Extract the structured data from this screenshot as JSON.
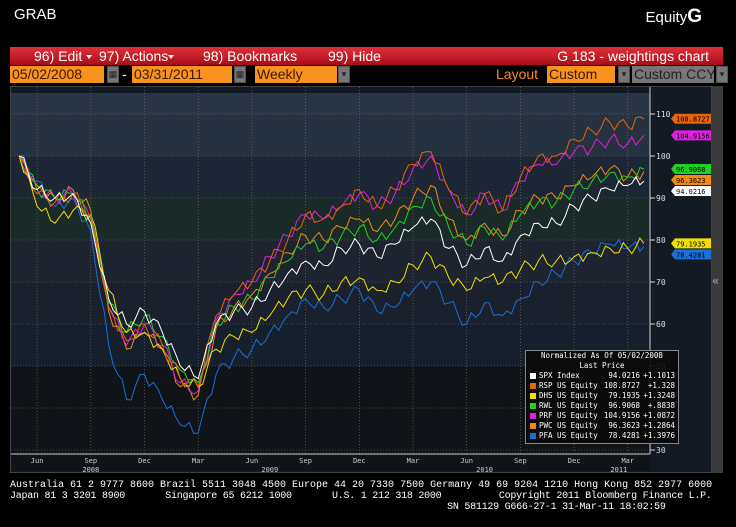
{
  "header": {
    "left": "GRAB",
    "right_prefix": "Equity",
    "right_logo": "G"
  },
  "menu": {
    "edit": "96) Edit",
    "actions": "97) Actions",
    "bookmarks": "98) Bookmarks",
    "hide": "99) Hide",
    "title": "G 183 - weightings chart"
  },
  "controls": {
    "start_date": "05/02/2008",
    "dash": "-",
    "end_date": "03/31/2011",
    "period": "Weekly",
    "layout_label": "Layout",
    "layout_value": "Custom",
    "currency": "Custom CCY"
  },
  "collapse_icon": "«",
  "legend": {
    "title": "Normalized As Of 05/02/2008",
    "subtitle": "Last Price"
  },
  "chart_data": {
    "type": "line",
    "title": "G 183 - weightings chart",
    "ylim": [
      25,
      115
    ],
    "yticks": [
      30,
      40,
      50,
      60,
      70,
      80,
      90,
      100,
      110
    ],
    "xticks": [
      {
        "label": "Jun",
        "m": 1
      },
      {
        "label": "Sep",
        "m": 4
      },
      {
        "label": "Dec",
        "m": 7
      },
      {
        "label": "Mar",
        "m": 10
      },
      {
        "label": "Jun",
        "m": 13
      },
      {
        "label": "Sep",
        "m": 16
      },
      {
        "label": "Dec",
        "m": 19
      },
      {
        "label": "Mar",
        "m": 22
      },
      {
        "label": "Jun",
        "m": 25
      },
      {
        "label": "Sep",
        "m": 28
      },
      {
        "label": "Dec",
        "m": 31
      },
      {
        "label": "Mar",
        "m": 34
      }
    ],
    "years": [
      {
        "label": "2008",
        "m": 4
      },
      {
        "label": "2009",
        "m": 14
      },
      {
        "label": "2010",
        "m": 26
      },
      {
        "label": "2011",
        "m": 33.5
      }
    ],
    "x_months": [
      0,
      1,
      2,
      3,
      4,
      5,
      6,
      7,
      8,
      9,
      10,
      11,
      12,
      13,
      14,
      15,
      16,
      17,
      18,
      19,
      20,
      21,
      22,
      23,
      24,
      25,
      26,
      27,
      28,
      29,
      30,
      31,
      32,
      33,
      34,
      34.9
    ],
    "series": [
      {
        "name": "SPX Index",
        "color": "#ffffff",
        "last": "94.0216",
        "change": "+1.1013",
        "tag": "94.0216",
        "values": [
          100,
          92,
          90,
          91,
          84,
          66,
          60,
          63,
          58,
          50,
          47,
          60,
          63,
          64,
          68,
          72,
          75,
          74,
          78,
          79,
          76,
          79,
          83,
          85,
          78,
          74,
          78,
          75,
          81,
          84,
          84,
          88,
          90,
          92,
          93,
          94.02
        ]
      },
      {
        "name": "RSP US Equity",
        "color": "#e8640a",
        "last": "108.8727",
        "change": "+1.328",
        "tag": "108.8727",
        "values": [
          100,
          91,
          89,
          91,
          86,
          64,
          56,
          60,
          55,
          47,
          45,
          62,
          67,
          70,
          75,
          80,
          86,
          85,
          88,
          92,
          88,
          92,
          98,
          101,
          92,
          86,
          91,
          87,
          95,
          100,
          100,
          104,
          106,
          108,
          107,
          108.87
        ]
      },
      {
        "name": "DHS US Equity",
        "color": "#f0e000",
        "last": "79.1935",
        "change": "+1.3248",
        "tag": "79.1935",
        "values": [
          100,
          88,
          84,
          87,
          86,
          68,
          58,
          58,
          54,
          47,
          45,
          54,
          57,
          58,
          62,
          66,
          68,
          67,
          70,
          71,
          68,
          70,
          74,
          76,
          71,
          68,
          71,
          70,
          73,
          75,
          75,
          76,
          77,
          78,
          78,
          79.19
        ]
      },
      {
        "name": "RWL US Equity",
        "color": "#22d022",
        "last": "96.9068",
        "change": "+.8838",
        "tag": "96.9068",
        "values": [
          100,
          92,
          90,
          91,
          85,
          65,
          58,
          62,
          57,
          49,
          46,
          60,
          64,
          66,
          71,
          75,
          79,
          78,
          81,
          83,
          80,
          83,
          88,
          90,
          83,
          79,
          83,
          80,
          86,
          89,
          89,
          92,
          94,
          96,
          95,
          96.91
        ]
      },
      {
        "name": "PRF US Equity",
        "color": "#e020e0",
        "last": "104.9156",
        "change": "+1.0872",
        "tag": "104.9156",
        "values": [
          100,
          92,
          90,
          91,
          85,
          64,
          55,
          60,
          55,
          46,
          44,
          61,
          67,
          70,
          76,
          81,
          86,
          85,
          88,
          91,
          88,
          91,
          97,
          100,
          92,
          86,
          91,
          87,
          94,
          98,
          98,
          101,
          102,
          104,
          103,
          104.92
        ]
      },
      {
        "name": "PWC US Equity",
        "color": "#f08a10",
        "last": "96.3623",
        "change": "+1.2864",
        "tag": "96.3623",
        "values": [
          100,
          93,
          90,
          92,
          87,
          63,
          54,
          58,
          54,
          45,
          43,
          59,
          64,
          67,
          72,
          77,
          81,
          80,
          83,
          85,
          82,
          85,
          90,
          93,
          85,
          80,
          84,
          81,
          87,
          90,
          90,
          93,
          95,
          97,
          95,
          96.36
        ]
      },
      {
        "name": "PFA US Equity",
        "color": "#1a6fd8",
        "last": "78.4281",
        "change": "+1.3976",
        "tag": "78.4281",
        "values": [
          100,
          94,
          88,
          90,
          82,
          55,
          42,
          48,
          42,
          36,
          34,
          48,
          52,
          54,
          58,
          62,
          66,
          64,
          66,
          68,
          63,
          64,
          68,
          70,
          65,
          60,
          65,
          62,
          66,
          70,
          72,
          75,
          77,
          79,
          78,
          78.43
        ]
      }
    ]
  },
  "footer": {
    "line1": "Australia 61 2 9777 8600 Brazil 5511 3048 4500 Europe 44 20 7330 7500 Germany 49 69 9204 1210 Hong Kong 852 2977 6000",
    "line2": "Japan 81 3 3201 8900       Singapore 65 6212 1000       U.S. 1 212 318 2000          Copyright 2011 Bloomberg Finance L.P.",
    "line3": "                                                                            SN 581129 G666-27-1 31-Mar-11 18:02:59"
  }
}
